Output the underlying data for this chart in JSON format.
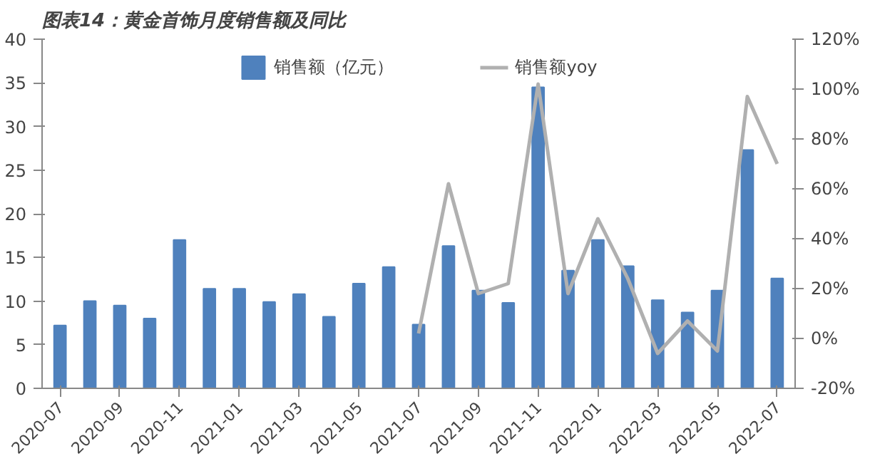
{
  "chart_data": {
    "type": "bar",
    "title": "图表14：黄金首饰月度销售额及同比",
    "categories": [
      "2020-07",
      null,
      "2020-09",
      null,
      "2020-11",
      null,
      "2021-01",
      null,
      "2021-03",
      null,
      "2021-05",
      null,
      "2021-07",
      null,
      "2021-09",
      null,
      "2021-11",
      null,
      "2022-01",
      null,
      "2022-03",
      null,
      "2022-05",
      null,
      "2022-07"
    ],
    "series": [
      {
        "name": "销售额（亿元）",
        "color": "#4f81bd",
        "values": [
          7.2,
          10.0,
          9.5,
          8.0,
          17.0,
          11.4,
          11.4,
          9.9,
          10.8,
          8.2,
          12.0,
          13.9,
          7.3,
          16.3,
          11.2,
          9.8,
          34.5,
          13.5,
          17.0,
          14.0,
          10.1,
          8.7,
          11.2,
          27.3,
          12.6
        ]
      },
      {
        "name": "销售额yoy",
        "type": "line",
        "axis": "y2",
        "color": "#b0b0b0",
        "values": [
          null,
          null,
          null,
          null,
          null,
          null,
          null,
          null,
          null,
          null,
          null,
          null,
          2,
          62,
          18,
          22,
          102,
          18,
          48,
          24,
          -6,
          7,
          -5,
          97,
          70
        ]
      }
    ],
    "ylim": [
      0,
      40
    ],
    "yticks": [
      0,
      5,
      10,
      15,
      20,
      25,
      30,
      35,
      40
    ],
    "y2lim": [
      -20,
      120
    ],
    "y2ticks": [
      {
        "value": -20,
        "label": "-20%"
      },
      {
        "value": 0,
        "label": "0%"
      },
      {
        "value": 20,
        "label": "20%"
      },
      {
        "value": 40,
        "label": "40%"
      },
      {
        "value": 60,
        "label": "60%"
      },
      {
        "value": 80,
        "label": "80%"
      },
      {
        "value": 100,
        "label": "100%"
      },
      {
        "value": 120,
        "label": "120%"
      }
    ],
    "legend": "top",
    "grid": false
  }
}
